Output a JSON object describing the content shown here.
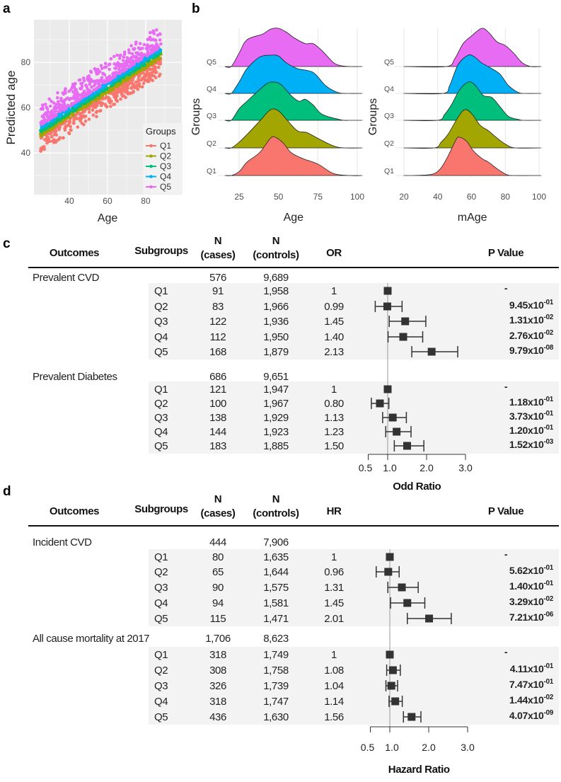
{
  "panels": {
    "a": "a",
    "b": "b",
    "c": "c",
    "d": "d"
  },
  "chart_data": [
    {
      "type": "scatter",
      "xlabel": "Age",
      "ylabel": "Predicted age",
      "xticks": [
        "40",
        "60",
        "80"
      ],
      "yticks": [
        "40",
        "60",
        "80"
      ],
      "xlim": [
        21.5,
        98.7
      ],
      "ylim": [
        21.6,
        98.7
      ],
      "grid": true,
      "legend_title": "Groups",
      "legend_position": "bottom-right",
      "fit": {
        "intercept": 36,
        "slope": 0.55
      },
      "age_range": [
        25,
        88
      ],
      "series": [
        {
          "name": "Q1",
          "color": "#F8766D",
          "residual_range": [
            -10,
            -2.5
          ]
        },
        {
          "name": "Q2",
          "color": "#A3A500",
          "residual_range": [
            -2.5,
            -0.8
          ]
        },
        {
          "name": "Q3",
          "color": "#00BF7D",
          "residual_range": [
            -0.8,
            0.8
          ]
        },
        {
          "name": "Q4",
          "color": "#00B0F6",
          "residual_range": [
            0.8,
            2.5
          ]
        },
        {
          "name": "Q5",
          "color": "#E76BF3",
          "residual_range": [
            2.5,
            12
          ]
        }
      ]
    },
    {
      "type": "area",
      "subtype": "ridgeline",
      "xlabel": "Age",
      "ylabel": "Groups",
      "xticks": [
        "25",
        "50",
        "75",
        "100"
      ],
      "xtick_values": [
        25,
        50,
        75,
        100
      ],
      "xlim": [
        16,
        103
      ],
      "series": [
        {
          "name": "Q1",
          "color": "#F8766D",
          "points": [
            [
              20,
              0
            ],
            [
              25,
              0.1
            ],
            [
              30,
              0.35
            ],
            [
              38,
              0.6
            ],
            [
              45,
              0.98
            ],
            [
              48,
              1
            ],
            [
              53,
              0.85
            ],
            [
              58,
              0.6
            ],
            [
              65,
              0.45
            ],
            [
              75,
              0.3
            ],
            [
              85,
              0.05
            ],
            [
              95,
              0
            ]
          ]
        },
        {
          "name": "Q2",
          "color": "#A3A500",
          "points": [
            [
              20,
              0
            ],
            [
              25,
              0.15
            ],
            [
              30,
              0.35
            ],
            [
              38,
              0.7
            ],
            [
              45,
              1
            ],
            [
              50,
              0.97
            ],
            [
              55,
              0.75
            ],
            [
              62,
              0.45
            ],
            [
              68,
              0.4
            ],
            [
              75,
              0.25
            ],
            [
              85,
              0.05
            ],
            [
              92,
              0
            ]
          ]
        },
        {
          "name": "Q3",
          "color": "#00BF7D",
          "points": [
            [
              20,
              0
            ],
            [
              25,
              0.3
            ],
            [
              30,
              0.5
            ],
            [
              38,
              0.8
            ],
            [
              43,
              0.97
            ],
            [
              48,
              1
            ],
            [
              52,
              0.92
            ],
            [
              58,
              0.65
            ],
            [
              63,
              0.5
            ],
            [
              67,
              0.55
            ],
            [
              72,
              0.4
            ],
            [
              78,
              0.15
            ],
            [
              90,
              0.01
            ],
            [
              95,
              0
            ]
          ]
        },
        {
          "name": "Q4",
          "color": "#00B0F6",
          "points": [
            [
              20,
              0
            ],
            [
              25,
              0.3
            ],
            [
              30,
              0.65
            ],
            [
              38,
              0.95
            ],
            [
              45,
              1
            ],
            [
              50,
              0.98
            ],
            [
              55,
              0.8
            ],
            [
              62,
              0.65
            ],
            [
              72,
              0.55
            ],
            [
              80,
              0.2
            ],
            [
              88,
              0.02
            ],
            [
              95,
              0
            ]
          ]
        },
        {
          "name": "Q5",
          "color": "#E76BF3",
          "points": [
            [
              20,
              0
            ],
            [
              25,
              0.35
            ],
            [
              30,
              0.7
            ],
            [
              40,
              0.85
            ],
            [
              45,
              0.98
            ],
            [
              50,
              1
            ],
            [
              55,
              0.9
            ],
            [
              60,
              0.75
            ],
            [
              67,
              0.6
            ],
            [
              72,
              0.6
            ],
            [
              78,
              0.4
            ],
            [
              85,
              0.1
            ],
            [
              90,
              0.02
            ],
            [
              96,
              0
            ]
          ]
        }
      ]
    },
    {
      "type": "area",
      "subtype": "ridgeline",
      "xlabel": "mAge",
      "ylabel": "Groups",
      "xticks": [
        "20",
        "40",
        "60",
        "80",
        "100"
      ],
      "xtick_values": [
        20,
        40,
        60,
        80,
        100
      ],
      "xlim": [
        20,
        101
      ],
      "series": [
        {
          "name": "Q1",
          "color": "#F8766D",
          "points": [
            [
              25,
              0
            ],
            [
              32,
              0.01
            ],
            [
              38,
              0.05
            ],
            [
              42,
              0.2
            ],
            [
              46,
              0.5
            ],
            [
              51,
              0.95
            ],
            [
              53,
              1
            ],
            [
              57,
              0.9
            ],
            [
              61,
              0.65
            ],
            [
              66,
              0.45
            ],
            [
              70,
              0.35
            ],
            [
              76,
              0.15
            ],
            [
              81,
              0.02
            ],
            [
              85,
              0
            ]
          ]
        },
        {
          "name": "Q2",
          "color": "#A3A500",
          "points": [
            [
              38,
              0
            ],
            [
              42,
              0.15
            ],
            [
              46,
              0.35
            ],
            [
              52,
              0.8
            ],
            [
              56,
              1
            ],
            [
              60,
              0.9
            ],
            [
              65,
              0.6
            ],
            [
              70,
              0.45
            ],
            [
              74,
              0.3
            ],
            [
              80,
              0.1
            ],
            [
              86,
              0
            ]
          ]
        },
        {
          "name": "Q3",
          "color": "#00BF7D",
          "points": [
            [
              40,
              0
            ],
            [
              44,
              0.15
            ],
            [
              48,
              0.4
            ],
            [
              53,
              0.8
            ],
            [
              58,
              1
            ],
            [
              62,
              0.93
            ],
            [
              67,
              0.65
            ],
            [
              72,
              0.6
            ],
            [
              77,
              0.35
            ],
            [
              82,
              0.1
            ],
            [
              88,
              0.02
            ],
            [
              91,
              0
            ]
          ]
        },
        {
          "name": "Q4",
          "color": "#00B0F6",
          "points": [
            [
              43,
              0
            ],
            [
              47,
              0.2
            ],
            [
              52,
              0.75
            ],
            [
              58,
              1
            ],
            [
              62,
              0.95
            ],
            [
              66,
              0.8
            ],
            [
              72,
              0.65
            ],
            [
              77,
              0.5
            ],
            [
              82,
              0.2
            ],
            [
              88,
              0.02
            ],
            [
              92,
              0
            ]
          ]
        },
        {
          "name": "Q5",
          "color": "#E76BF3",
          "points": [
            [
              45,
              0
            ],
            [
              50,
              0.2
            ],
            [
              55,
              0.6
            ],
            [
              60,
              0.8
            ],
            [
              66,
              1
            ],
            [
              70,
              0.9
            ],
            [
              75,
              0.65
            ],
            [
              80,
              0.55
            ],
            [
              85,
              0.35
            ],
            [
              90,
              0.1
            ],
            [
              95,
              0
            ]
          ]
        }
      ]
    },
    {
      "type": "forest",
      "headers": {
        "outcomes": "Outcomes",
        "subgroups": "Subgroups",
        "n": "N",
        "cases": "(cases)",
        "controls": "(controls)",
        "measure": "OR",
        "p": "P Value"
      },
      "axis_title": "Odd Ratio",
      "ticks": [
        0.5,
        1.0,
        2.0,
        3.0
      ],
      "tick_labels": [
        "0.5",
        "1.0",
        "2.0",
        "3.0"
      ],
      "groups": [
        {
          "outcome": "Prevalent CVD",
          "cases": "576",
          "controls": "9,689",
          "rows": [
            {
              "q": "Q1",
              "cases": "91",
              "controls": "1,958",
              "est": "1",
              "value": 1,
              "ci": [
                1,
                1
              ],
              "p_mant": "-",
              "p_exp": ""
            },
            {
              "q": "Q2",
              "cases": "83",
              "controls": "1,966",
              "est": "0.99",
              "value": 0.99,
              "ci": [
                0.68,
                1.37
              ],
              "p_mant": "9.45x10",
              "p_exp": "-01"
            },
            {
              "q": "Q3",
              "cases": "122",
              "controls": "1,936",
              "est": "1.45",
              "value": 1.45,
              "ci": [
                1.04,
                1.98
              ],
              "p_mant": "1.31x10",
              "p_exp": "-02"
            },
            {
              "q": "Q4",
              "cases": "112",
              "controls": "1,950",
              "est": "1.40",
              "value": 1.4,
              "ci": [
                1.01,
                1.9
              ],
              "p_mant": "2.76x10",
              "p_exp": "-02"
            },
            {
              "q": "Q5",
              "cases": "168",
              "controls": "1,879",
              "est": "2.13",
              "value": 2.13,
              "ci": [
                1.62,
                2.8
              ],
              "p_mant": "9.79x10",
              "p_exp": "-08"
            }
          ]
        },
        {
          "outcome": "Prevalent Diabetes",
          "cases": "686",
          "controls": "9,651",
          "rows": [
            {
              "q": "Q1",
              "cases": "121",
              "controls": "1,947",
              "est": "1",
              "value": 1,
              "ci": [
                1,
                1
              ],
              "p_mant": "-",
              "p_exp": ""
            },
            {
              "q": "Q2",
              "cases": "100",
              "controls": "1,967",
              "est": "0.80",
              "value": 0.8,
              "ci": [
                0.58,
                1.03
              ],
              "p_mant": "1.18x10",
              "p_exp": "-01"
            },
            {
              "q": "Q3",
              "cases": "138",
              "controls": "1,929",
              "est": "1.13",
              "value": 1.13,
              "ci": [
                0.87,
                1.48
              ],
              "p_mant": "3.73x10",
              "p_exp": "-01"
            },
            {
              "q": "Q4",
              "cases": "144",
              "controls": "1,923",
              "est": "1.23",
              "value": 1.23,
              "ci": [
                0.95,
                1.6
              ],
              "p_mant": "1.20x10",
              "p_exp": "-01"
            },
            {
              "q": "Q5",
              "cases": "183",
              "controls": "1,885",
              "est": "1.50",
              "value": 1.5,
              "ci": [
                1.17,
                1.93
              ],
              "p_mant": "1.52x10",
              "p_exp": "-03"
            }
          ]
        }
      ]
    },
    {
      "type": "forest",
      "headers": {
        "outcomes": "Outcomes",
        "subgroups": "Subgroups",
        "n": "N",
        "cases": "(cases)",
        "controls": "(controls)",
        "measure": "HR",
        "p": "P Value"
      },
      "axis_title": "Hazard Ratio",
      "ticks": [
        0.5,
        1.0,
        2.0,
        3.0
      ],
      "tick_labels": [
        "0.5",
        "1.0",
        "2.0",
        "3.0"
      ],
      "groups": [
        {
          "outcome": "Incident CVD",
          "cases": "444",
          "controls": "7,906",
          "rows": [
            {
              "q": "Q1",
              "cases": "80",
              "controls": "1,635",
              "est": "1",
              "value": 1,
              "ci": [
                1,
                1
              ],
              "p_mant": "-",
              "p_exp": ""
            },
            {
              "q": "Q2",
              "cases": "65",
              "controls": "1,644",
              "est": "0.96",
              "value": 0.96,
              "ci": [
                0.65,
                1.24
              ],
              "p_mant": "5.62x10",
              "p_exp": "-01"
            },
            {
              "q": "Q3",
              "cases": "90",
              "controls": "1,575",
              "est": "1.31",
              "value": 1.31,
              "ci": [
                0.95,
                1.73
              ],
              "p_mant": "1.40x10",
              "p_exp": "-01"
            },
            {
              "q": "Q4",
              "cases": "94",
              "controls": "1,581",
              "est": "1.45",
              "value": 1.45,
              "ci": [
                1.02,
                1.9
              ],
              "p_mant": "3.29x10",
              "p_exp": "-02"
            },
            {
              "q": "Q5",
              "cases": "115",
              "controls": "1,471",
              "est": "2.01",
              "value": 2.01,
              "ci": [
                1.45,
                2.58
              ],
              "p_mant": "7.21x10",
              "p_exp": "-06"
            }
          ]
        },
        {
          "outcome": "All cause mortality at 2017",
          "cases": "1,706",
          "controls": "8,623",
          "rows": [
            {
              "q": "Q1",
              "cases": "318",
              "controls": "1,749",
              "est": "1",
              "value": 1,
              "ci": [
                1,
                1
              ],
              "p_mant": "-",
              "p_exp": ""
            },
            {
              "q": "Q2",
              "cases": "308",
              "controls": "1,758",
              "est": "1.08",
              "value": 1.08,
              "ci": [
                0.92,
                1.27
              ],
              "p_mant": "4.11x10",
              "p_exp": "-01"
            },
            {
              "q": "Q3",
              "cases": "326",
              "controls": "1,739",
              "est": "1.04",
              "value": 1.04,
              "ci": [
                0.9,
                1.2
              ],
              "p_mant": "7.47x10",
              "p_exp": "-01"
            },
            {
              "q": "Q4",
              "cases": "318",
              "controls": "1,747",
              "est": "1.14",
              "value": 1.14,
              "ci": [
                0.98,
                1.32
              ],
              "p_mant": "1.44x10",
              "p_exp": "-02"
            },
            {
              "q": "Q5",
              "cases": "436",
              "controls": "1,630",
              "est": "1.56",
              "value": 1.56,
              "ci": [
                1.35,
                1.8
              ],
              "p_mant": "4.07x10",
              "p_exp": "-09"
            }
          ]
        }
      ]
    }
  ]
}
